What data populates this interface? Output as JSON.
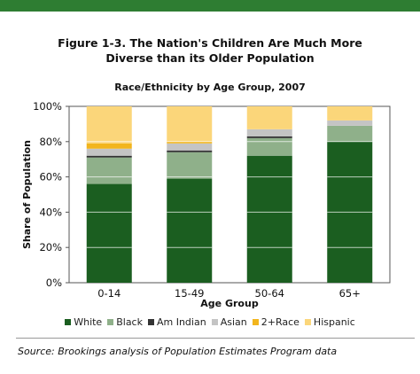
{
  "header": {
    "title_line1": "Figure 1-3. The Nation's Children Are Much More",
    "title_line2": "Diverse than its Older Population",
    "subtitle": "Race/Ethnicity by Age Group, 2007"
  },
  "chart_data": {
    "type": "bar",
    "stacked": true,
    "categories": [
      "0-14",
      "15-49",
      "50-64",
      "65+"
    ],
    "series": [
      {
        "name": "White",
        "color": "#1b5e20",
        "values": [
          56,
          59,
          72,
          80
        ]
      },
      {
        "name": "Black",
        "color": "#8fb08a",
        "values": [
          15,
          15,
          10,
          9
        ]
      },
      {
        "name": "Am Indian",
        "color": "#333333",
        "values": [
          1,
          1,
          1,
          0
        ]
      },
      {
        "name": "Asian",
        "color": "#c4c4c4",
        "values": [
          4,
          4,
          4,
          3
        ]
      },
      {
        "name": "2+Race",
        "color": "#f2b51d",
        "values": [
          3,
          1,
          0,
          0
        ]
      },
      {
        "name": "Hispanic",
        "color": "#fbd67a",
        "values": [
          21,
          20,
          13,
          8
        ]
      }
    ],
    "xlabel": "Age Group",
    "ylabel": "Share of Population",
    "ylim": [
      0,
      100
    ],
    "yticks": [
      "0%",
      "20%",
      "40%",
      "60%",
      "80%",
      "100%"
    ],
    "grid": true,
    "legend_position": "bottom"
  },
  "footer": {
    "source": "Source: Brookings analysis of Population Estimates Program data"
  }
}
